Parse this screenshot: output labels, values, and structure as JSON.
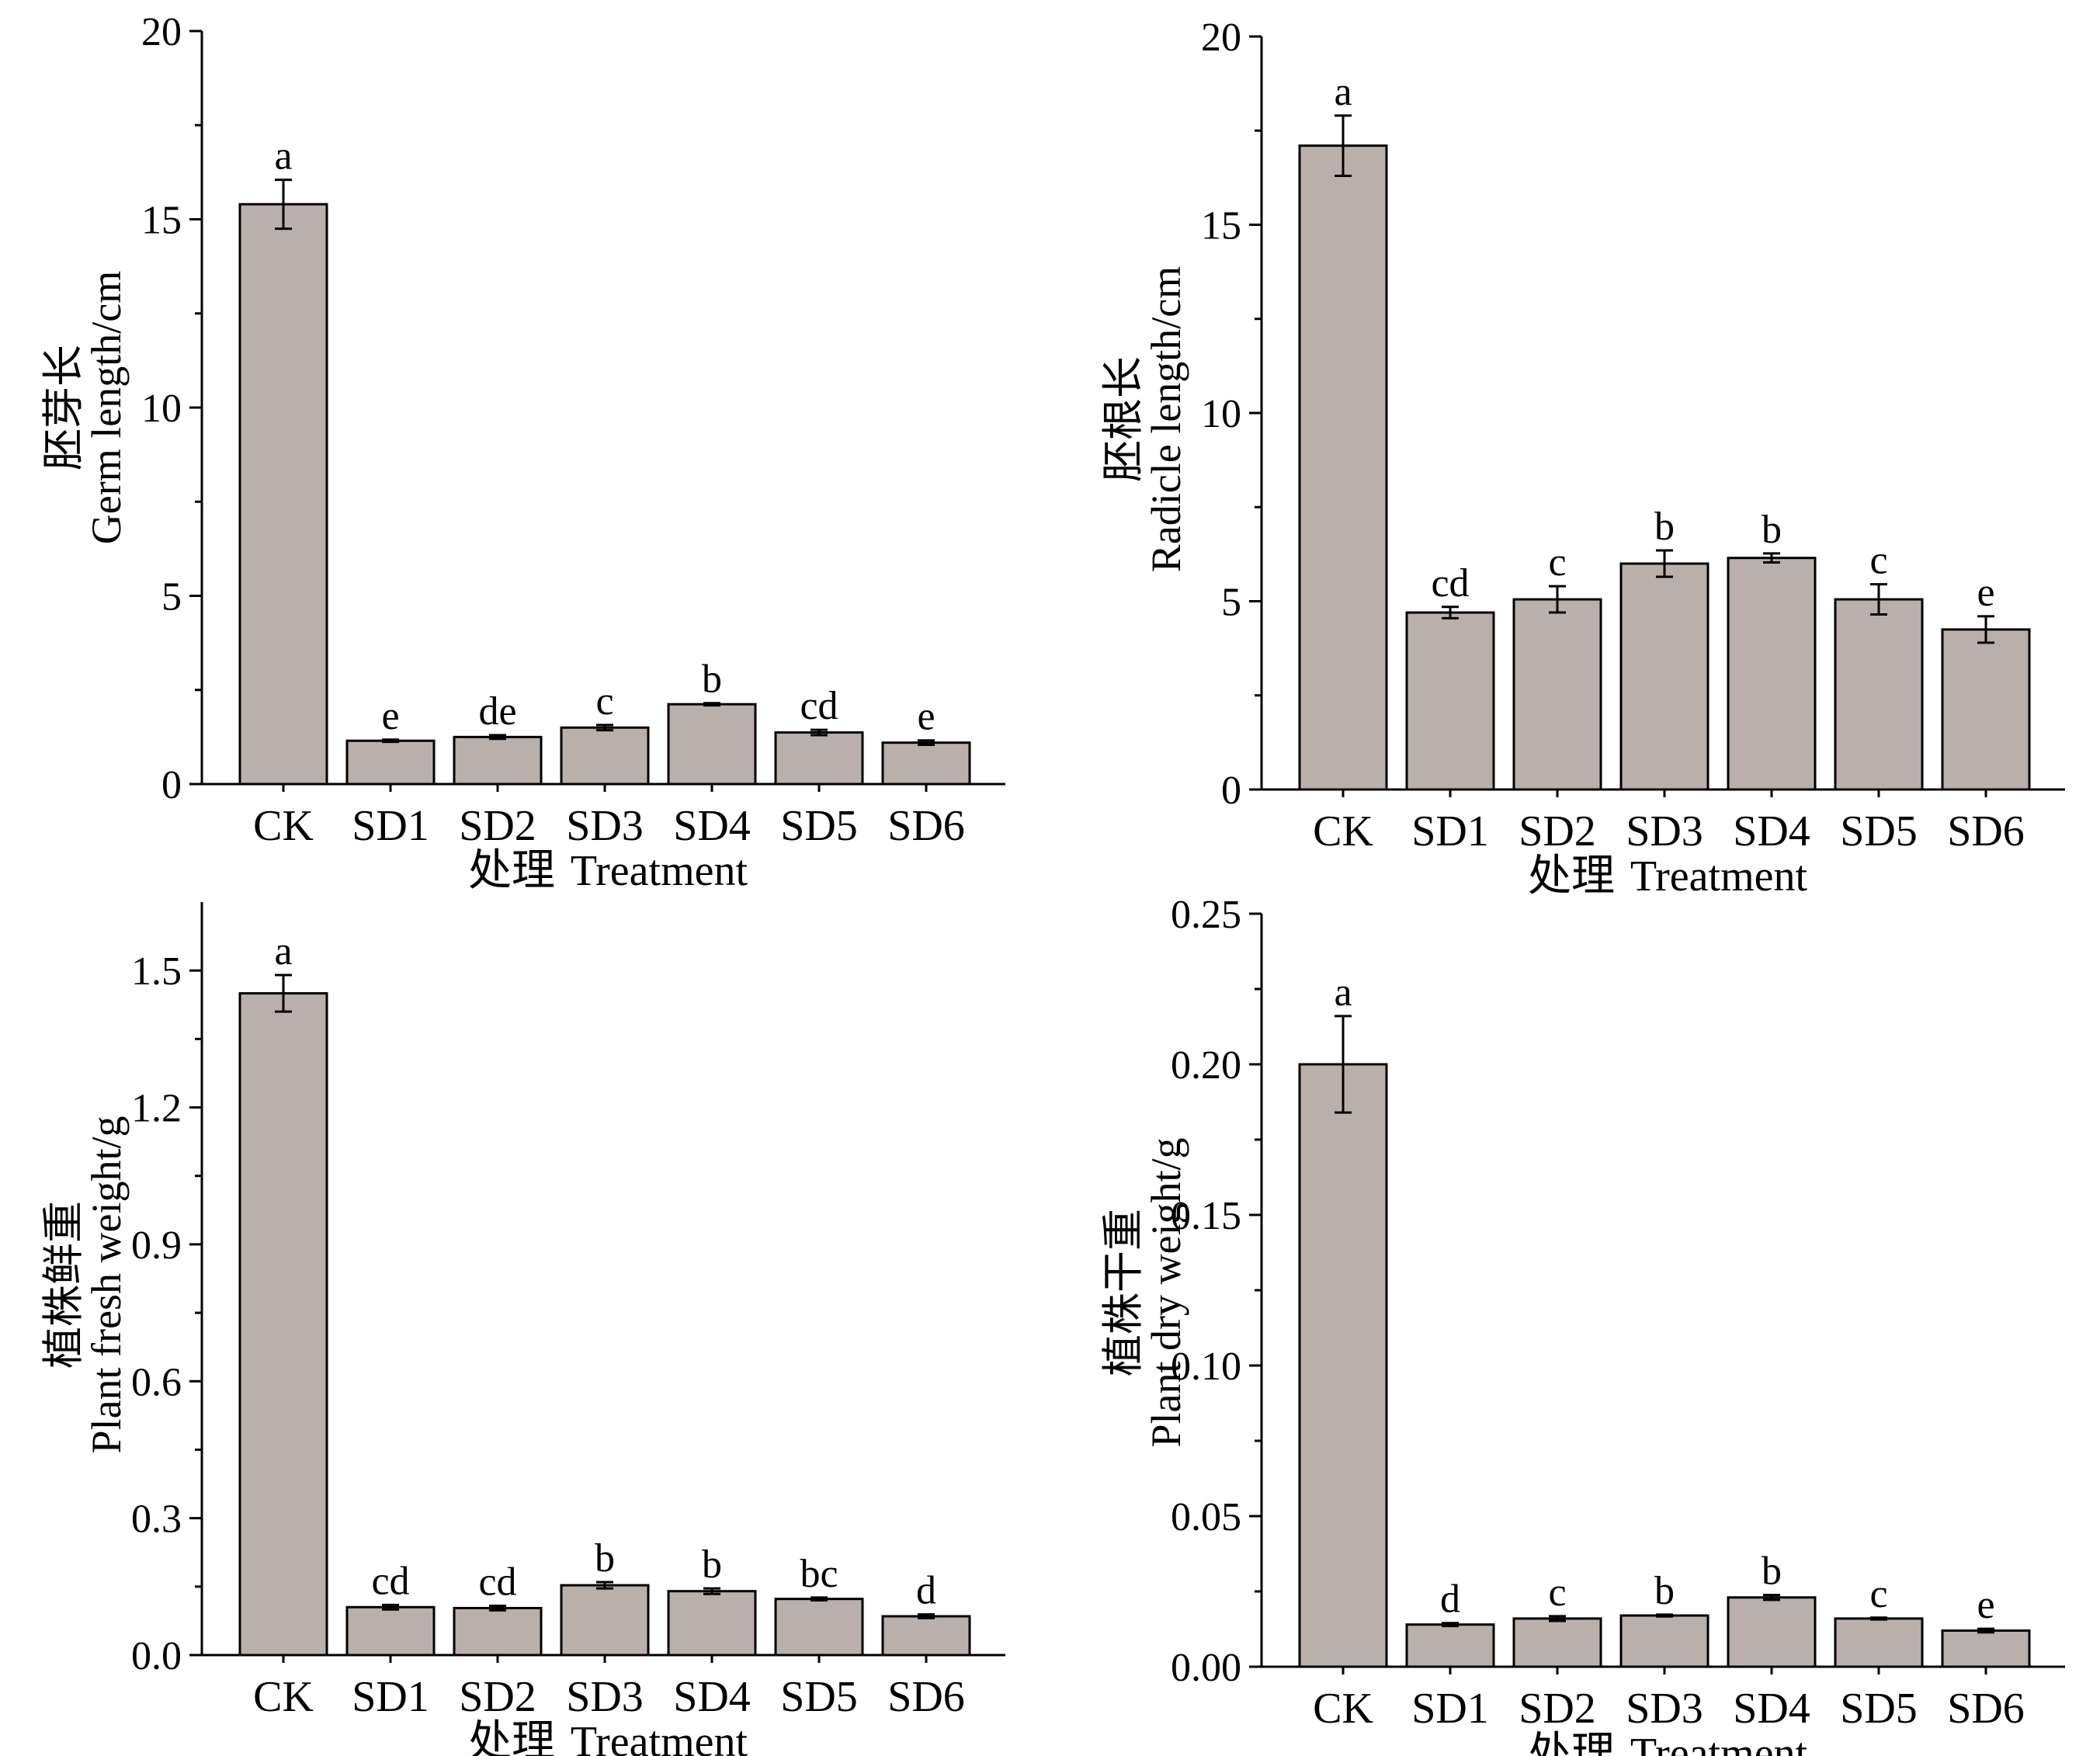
{
  "chart_data": [
    {
      "type": "bar",
      "panel": "top-left",
      "title": "",
      "categories": [
        "CK",
        "SD1",
        "SD2",
        "SD3",
        "SD4",
        "SD5",
        "SD6"
      ],
      "values": [
        15.4,
        1.15,
        1.25,
        1.5,
        2.12,
        1.37,
        1.1
      ],
      "errors": [
        0.65,
        0.03,
        0.05,
        0.07,
        0.03,
        0.07,
        0.06
      ],
      "significance": [
        "a",
        "e",
        "de",
        "c",
        "b",
        "cd",
        "e"
      ],
      "ylim": [
        0,
        20
      ],
      "yticks": [
        "0",
        "5",
        "10",
        "15",
        "20"
      ],
      "ylabel_cn": "胚芽长",
      "ylabel_en": "Germ length/cm",
      "xlabel_cn": "处理",
      "xlabel_en": "Treatment",
      "bar_color": "#bab0ab"
    },
    {
      "type": "bar",
      "panel": "top-right",
      "title": "",
      "categories": [
        "CK",
        "SD1",
        "SD2",
        "SD3",
        "SD4",
        "SD5",
        "SD6"
      ],
      "values": [
        17.1,
        4.7,
        5.05,
        6.0,
        6.15,
        5.05,
        4.25
      ],
      "errors": [
        0.8,
        0.15,
        0.35,
        0.35,
        0.12,
        0.4,
        0.35
      ],
      "significance": [
        "a",
        "cd",
        "c",
        "b",
        "b",
        "c",
        "e"
      ],
      "ylim": [
        0,
        20
      ],
      "yticks": [
        "0",
        "5",
        "10",
        "15",
        "20"
      ],
      "ylabel_cn": "胚根长",
      "ylabel_en": "Radicle length/cm",
      "xlabel_cn": "处理",
      "xlabel_en": "Treatment",
      "bar_color": "#bab0ab"
    },
    {
      "type": "bar",
      "panel": "bottom-left",
      "title": "",
      "categories": [
        "CK",
        "SD1",
        "SD2",
        "SD3",
        "SD4",
        "SD5",
        "SD6"
      ],
      "values": [
        1.45,
        0.105,
        0.103,
        0.153,
        0.14,
        0.123,
        0.085
      ],
      "errors": [
        0.04,
        0.005,
        0.005,
        0.007,
        0.006,
        0.003,
        0.004
      ],
      "significance": [
        "a",
        "cd",
        "cd",
        "b",
        "b",
        "bc",
        "d"
      ],
      "ylim": [
        0,
        1.65
      ],
      "yticks": [
        "0.0",
        "0.3",
        "0.6",
        "0.9",
        "1.2",
        "1.5"
      ],
      "ylabel_cn": "植株鲜重",
      "ylabel_en": "Plant fresh weight/g",
      "xlabel_cn": "处理",
      "xlabel_en": "Treatment",
      "bar_color": "#bab0ab"
    },
    {
      "type": "bar",
      "panel": "bottom-right",
      "title": "",
      "categories": [
        "CK",
        "SD1",
        "SD2",
        "SD3",
        "SD4",
        "SD5",
        "SD6"
      ],
      "values": [
        0.2,
        0.014,
        0.016,
        0.017,
        0.023,
        0.016,
        0.012
      ],
      "errors": [
        0.016,
        0.0005,
        0.0008,
        0.0003,
        0.0008,
        0.0003,
        0.0006
      ],
      "significance": [
        "a",
        "d",
        "c",
        "b",
        "b",
        "c",
        "e"
      ],
      "ylim": [
        0,
        0.25
      ],
      "yticks": [
        "0.00",
        "0.05",
        "0.10",
        "0.15",
        "0.20",
        "0.25"
      ],
      "ylabel_cn": "植株干重",
      "ylabel_en": "Plant dry weight/g",
      "xlabel_cn": "处理",
      "xlabel_en": "Treatment",
      "bar_color": "#bab0ab"
    }
  ]
}
